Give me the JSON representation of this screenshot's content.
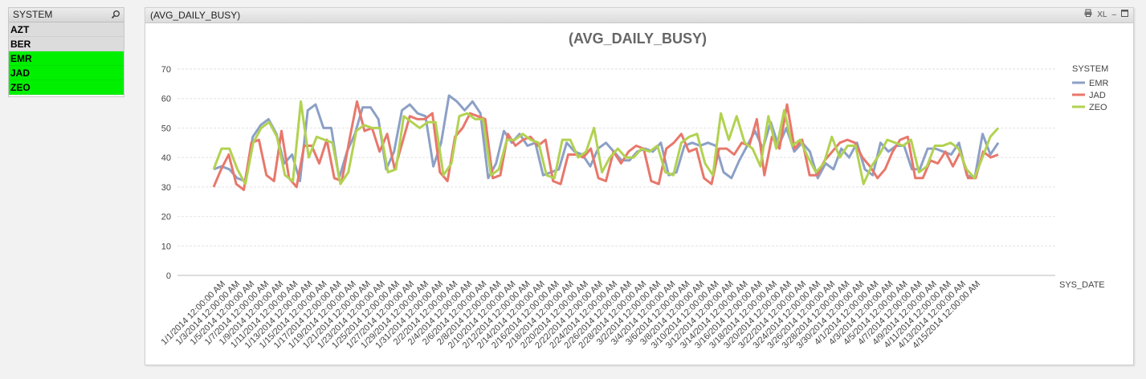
{
  "listbox": {
    "title": "SYSTEM",
    "items": [
      {
        "label": "AZT",
        "state": "excluded"
      },
      {
        "label": "BER",
        "state": "excluded"
      },
      {
        "label": "EMR",
        "state": "possible"
      },
      {
        "label": "JAD",
        "state": "possible"
      },
      {
        "label": "ZEO",
        "state": "possible"
      }
    ]
  },
  "chart_box": {
    "caption": "(AVG_DAILY_BUSY)",
    "print_icon": "printer-icon",
    "xl_label": "XL",
    "minimize_label": "–",
    "maximize_icon": "maximize-icon"
  },
  "chart_data": {
    "type": "line",
    "title": "(AVG_DAILY_BUSY)",
    "xlabel": "SYS_DATE",
    "ylabel": "",
    "ylim": [
      0,
      70
    ],
    "yticks": [
      0,
      10,
      20,
      30,
      40,
      50,
      60,
      70
    ],
    "grid": true,
    "legend_title": "SYSTEM",
    "legend_position": "right",
    "x_tick_labels": [
      "1/1/2014 12:00:00 AM",
      "1/3/2014 12:00:00 AM",
      "1/5/2014 12:00:00 AM",
      "1/7/2014 12:00:00 AM",
      "1/9/2014 12:00:00 AM",
      "1/11/2014 12:00:00 AM",
      "1/13/2014 12:00:00 AM",
      "1/15/2014 12:00:00 AM",
      "1/17/2014 12:00:00 AM",
      "1/19/2014 12:00:00 AM",
      "1/21/2014 12:00:00 AM",
      "1/23/2014 12:00:00 AM",
      "1/25/2014 12:00:00 AM",
      "1/27/2014 12:00:00 AM",
      "1/29/2014 12:00:00 AM",
      "1/31/2014 12:00:00 AM",
      "2/2/2014 12:00:00 AM",
      "2/4/2014 12:00:00 AM",
      "2/6/2014 12:00:00 AM",
      "2/8/2014 12:00:00 AM",
      "2/10/2014 12:00:00 AM",
      "2/12/2014 12:00:00 AM",
      "2/14/2014 12:00:00 AM",
      "2/16/2014 12:00:00 AM",
      "2/18/2014 12:00:00 AM",
      "2/20/2014 12:00:00 AM",
      "2/22/2014 12:00:00 AM",
      "2/24/2014 12:00:00 AM",
      "2/26/2014 12:00:00 AM",
      "2/28/2014 12:00:00 AM",
      "3/2/2014 12:00:00 AM",
      "3/4/2014 12:00:00 AM",
      "3/6/2014 12:00:00 AM",
      "3/8/2014 12:00:00 AM",
      "3/10/2014 12:00:00 AM",
      "3/12/2014 12:00:00 AM",
      "3/14/2014 12:00:00 AM",
      "3/16/2014 12:00:00 AM",
      "3/18/2014 12:00:00 AM",
      "3/20/2014 12:00:00 AM",
      "3/22/2014 12:00:00 AM",
      "3/24/2014 12:00:00 AM",
      "3/26/2014 12:00:00 AM",
      "3/28/2014 12:00:00 AM",
      "3/30/2014 12:00:00 AM",
      "4/1/2014 12:00:00 AM",
      "4/3/2014 12:00:00 AM",
      "4/5/2014 12:00:00 AM",
      "4/7/2014 12:00:00 AM",
      "4/9/2014 12:00:00 AM",
      "4/11/2014 12:00:00 AM",
      "4/13/2014 12:00:00 AM",
      "4/15/2014 12:00:00 AM"
    ],
    "series": [
      {
        "name": "EMR",
        "color": "#8ca0c6",
        "values": [
          36,
          37,
          36,
          33,
          32,
          47,
          51,
          53,
          48,
          38,
          41,
          32,
          56,
          58,
          50,
          50,
          33,
          42,
          48,
          57,
          57,
          53,
          36,
          42,
          56,
          58,
          55,
          54,
          37,
          45,
          61,
          59,
          56,
          59,
          55,
          33,
          38,
          49,
          45,
          48,
          44,
          45,
          34,
          35,
          36,
          45,
          42,
          41,
          37,
          43,
          45,
          42,
          39,
          39,
          42,
          43,
          42,
          45,
          34,
          35,
          44,
          45,
          44,
          45,
          44,
          35,
          33,
          39,
          44,
          49,
          43,
          52,
          44,
          50,
          42,
          45,
          42,
          33,
          38,
          36,
          43,
          40,
          45,
          36,
          34,
          45,
          42,
          44,
          44,
          36,
          36,
          43,
          43,
          42,
          41,
          45,
          34,
          33,
          48,
          41,
          45
        ]
      },
      {
        "name": "JAD",
        "color": "#e8776b",
        "values": [
          30,
          36,
          41,
          31,
          29,
          45,
          46,
          34,
          32,
          49,
          33,
          30,
          44,
          44,
          38,
          46,
          33,
          32,
          46,
          59,
          49,
          50,
          42,
          48,
          36,
          45,
          54,
          53,
          53,
          55,
          35,
          32,
          47,
          50,
          55,
          54,
          53,
          33,
          34,
          48,
          44,
          46,
          47,
          44,
          46,
          32,
          31,
          41,
          41,
          40,
          43,
          33,
          32,
          42,
          38,
          42,
          44,
          43,
          32,
          31,
          43,
          45,
          48,
          42,
          43,
          33,
          31,
          43,
          43,
          41,
          45,
          44,
          53,
          34,
          47,
          43,
          58,
          43,
          46,
          34,
          34,
          39,
          42,
          45,
          46,
          45,
          40,
          37,
          33,
          36,
          42,
          46,
          47,
          33,
          33,
          39,
          38,
          42,
          37,
          42,
          33,
          33,
          42,
          40,
          41
        ]
      },
      {
        "name": "ZEO",
        "color": "#b2d251",
        "values": [
          36,
          43,
          43,
          36,
          31,
          45,
          50,
          52,
          47,
          34,
          32,
          59,
          40,
          47,
          46,
          45,
          31,
          35,
          49,
          51,
          50,
          50,
          35,
          36,
          54,
          52,
          50,
          52,
          52,
          34,
          38,
          54,
          55,
          53,
          53,
          34,
          36,
          46,
          46,
          48,
          46,
          45,
          34,
          33,
          46,
          46,
          40,
          42,
          50,
          35,
          40,
          43,
          40,
          40,
          43,
          42,
          44,
          35,
          34,
          45,
          47,
          48,
          38,
          34,
          55,
          46,
          54,
          45,
          43,
          37,
          54,
          43,
          56,
          44,
          46,
          40,
          35,
          38,
          47,
          40,
          44,
          44,
          31,
          37,
          41,
          46,
          45,
          44,
          46,
          35,
          37,
          44,
          44,
          45,
          43,
          36,
          33,
          40,
          47,
          50
        ]
      }
    ]
  }
}
